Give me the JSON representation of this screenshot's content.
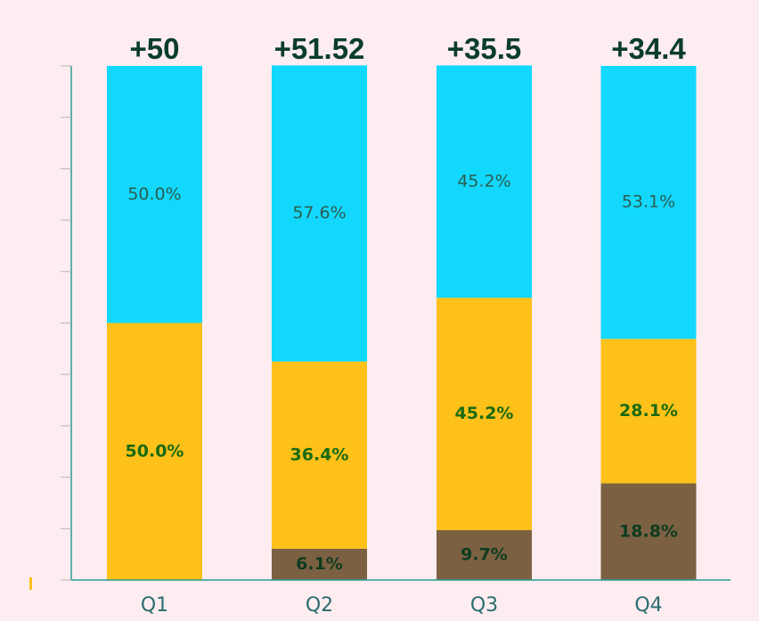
{
  "chart_data": {
    "type": "bar",
    "stacked": true,
    "normalized": true,
    "categories": [
      "Q1",
      "Q2",
      "Q3",
      "Q4"
    ],
    "totals": [
      "+50",
      "+51.52",
      "+35.5",
      "+34.4"
    ],
    "series": [
      {
        "color": "#7b6142",
        "values": [
          0,
          6.1,
          9.7,
          18.8
        ],
        "labels": [
          "",
          "6.1%",
          "9.7%",
          "18.8%"
        ],
        "label_color": "#0f3b1f"
      },
      {
        "color": "#fdc11a",
        "values": [
          50.0,
          36.4,
          45.2,
          28.1
        ],
        "labels": [
          "50.0%",
          "36.4%",
          "45.2%",
          "28.1%"
        ],
        "label_color": "#1a6a12"
      },
      {
        "color": "#12d8fd",
        "values": [
          50.0,
          57.6,
          45.2,
          53.1
        ],
        "labels": [
          "50.0%",
          "57.6%",
          "45.2%",
          "53.1%"
        ],
        "label_color": "#2c5d50"
      }
    ],
    "ylim": [
      0,
      100
    ],
    "yticks": 10,
    "grid": false,
    "legend": "none",
    "axis_color": "#2a9c93"
  }
}
